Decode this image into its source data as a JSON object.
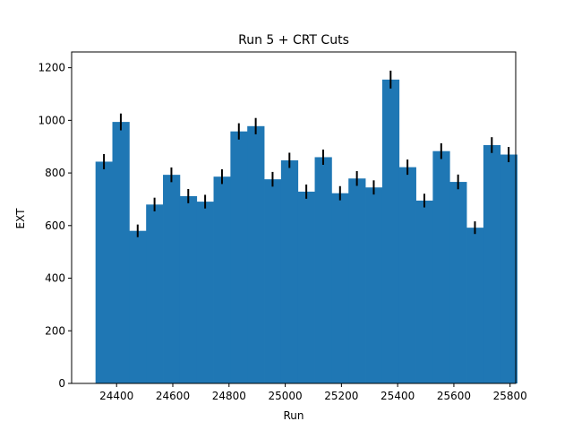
{
  "chart_data": {
    "type": "bar",
    "title": "Run 5 + CRT Cuts",
    "xlabel": "Run",
    "ylabel": "EXT",
    "xlim": [
      24240,
      25820
    ],
    "ylim": [
      0,
      1260
    ],
    "xticks": [
      24400,
      24600,
      24800,
      25000,
      25200,
      25400,
      25600,
      25800
    ],
    "yticks": [
      0,
      200,
      400,
      600,
      800,
      1000,
      1200
    ],
    "bar_color": "#1f77b4",
    "errorbar_color": "#000000",
    "grid": false,
    "bin_edges": [
      24325,
      24385,
      24445,
      24505,
      24565,
      24625,
      24685,
      24745,
      24805,
      24865,
      24925,
      24985,
      25045,
      25105,
      25165,
      25225,
      25285,
      25345,
      25405,
      25465,
      25525,
      25585,
      25645,
      25705,
      25765
    ],
    "values": [
      843,
      994,
      580,
      680,
      793,
      712,
      691,
      786,
      958,
      978,
      776,
      848,
      729,
      860,
      723,
      779,
      745,
      1155,
      822,
      695,
      883,
      766,
      592,
      906,
      870
    ],
    "errors": [
      29,
      32,
      24,
      26,
      28,
      27,
      26,
      28,
      31,
      31,
      28,
      29,
      27,
      29,
      27,
      28,
      27,
      34,
      29,
      26,
      30,
      28,
      24,
      30,
      29
    ]
  }
}
